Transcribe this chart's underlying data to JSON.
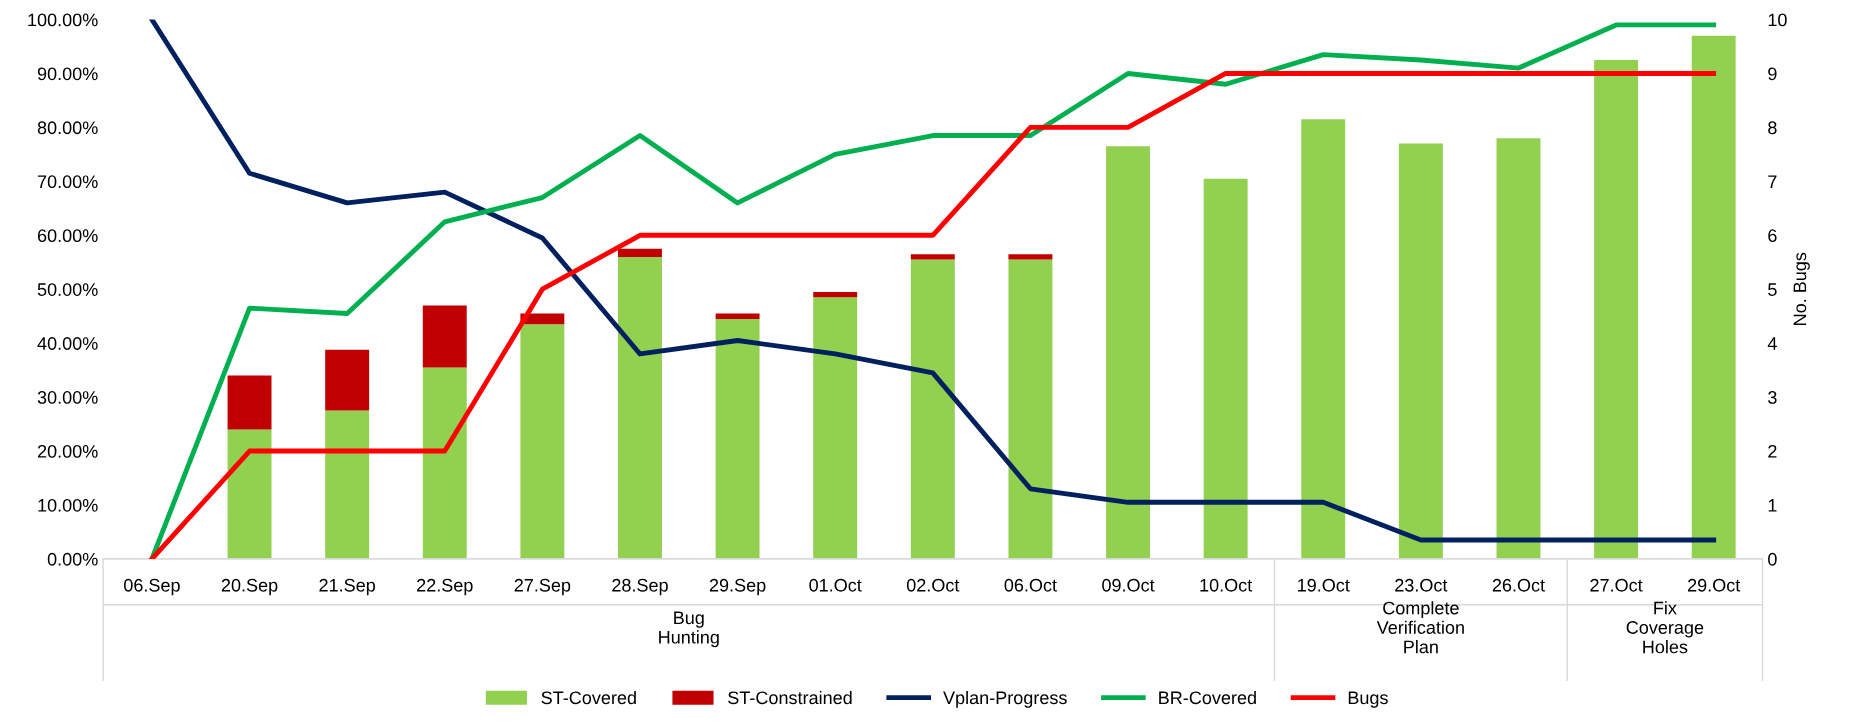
{
  "chart_data": {
    "type": "bar",
    "stacked": true,
    "categories": [
      "06.Sep",
      "20.Sep",
      "21.Sep",
      "22.Sep",
      "27.Sep",
      "28.Sep",
      "29.Sep",
      "01.Oct",
      "02.Oct",
      "06.Oct",
      "09.Oct",
      "10.Oct",
      "19.Oct",
      "23.Oct",
      "26.Oct",
      "27.Oct",
      "29.Oct"
    ],
    "series": [
      {
        "name": "ST-Covered",
        "color": "#92d050",
        "values": [
          0,
          24,
          27.5,
          35.5,
          43.5,
          56,
          44.5,
          48.5,
          55.5,
          55.5,
          76.5,
          70.5,
          81.5,
          77,
          78,
          92.5,
          97
        ]
      },
      {
        "name": "ST-Constrained",
        "color": "#c00000",
        "values": [
          0,
          10,
          11.3,
          11.5,
          2,
          1.5,
          1,
          1,
          1,
          1,
          0,
          0,
          0,
          0,
          0,
          0,
          0
        ]
      },
      {
        "name": "Vplan-Progress",
        "type": "line",
        "color": "#002060",
        "values": [
          100,
          71.5,
          66,
          68,
          59.5,
          38,
          40.5,
          38,
          34.5,
          13,
          10.5,
          10.5,
          10.5,
          3.5,
          3.5,
          3.5,
          3.5
        ]
      },
      {
        "name": "BR-Covered",
        "type": "line",
        "color": "#00b050",
        "values": [
          0,
          46.5,
          45.5,
          62.5,
          67,
          78.5,
          66,
          75,
          78.5,
          78.5,
          90,
          88,
          93.5,
          92.5,
          91,
          99,
          99
        ]
      },
      {
        "name": "Bugs",
        "type": "line",
        "axis": "y2",
        "color": "#ff0000",
        "values": [
          0,
          2,
          2,
          2,
          5,
          6,
          6,
          6,
          6,
          8,
          8,
          9,
          9,
          9,
          9,
          9,
          9
        ]
      }
    ],
    "ylim": [
      0,
      100
    ],
    "yticks": [
      {
        "value": 0,
        "label": "0.00%"
      },
      {
        "value": 10,
        "label": "10.00%"
      },
      {
        "value": 20,
        "label": "20.00%"
      },
      {
        "value": 30,
        "label": "30.00%"
      },
      {
        "value": 40,
        "label": "40.00%"
      },
      {
        "value": 50,
        "label": "50.00%"
      },
      {
        "value": 60,
        "label": "60.00%"
      },
      {
        "value": 70,
        "label": "70.00%"
      },
      {
        "value": 80,
        "label": "80.00%"
      },
      {
        "value": 90,
        "label": "90.00%"
      },
      {
        "value": 100,
        "label": "100.00%"
      }
    ],
    "y2lim": [
      0,
      10
    ],
    "y2ticks": [
      0,
      1,
      2,
      3,
      4,
      5,
      6,
      7,
      8,
      9,
      10
    ],
    "y2label": "No. Bugs",
    "annotations": [
      "Bug\nHunting",
      "Complete\nVerification\nPlan",
      "Fix\nCoverage\nHoles"
    ],
    "legend": "bottom",
    "grid": false,
    "marker": "none",
    "line_style": "solid"
  }
}
